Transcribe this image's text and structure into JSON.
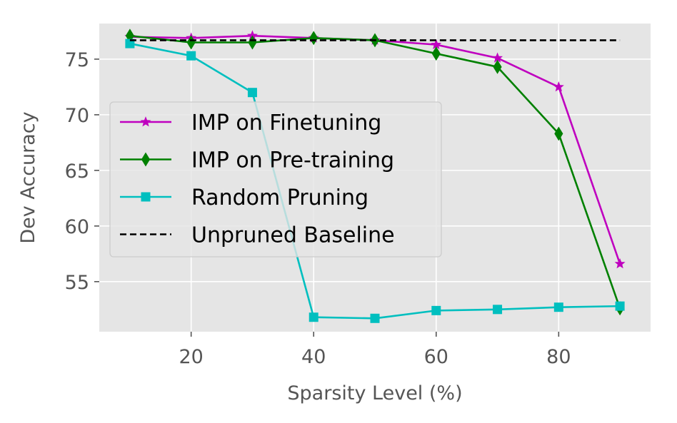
{
  "chart_data": {
    "type": "line",
    "title": "",
    "xlabel": "Sparsity Level (%)",
    "ylabel": "Dev Accuracy",
    "xlim": [
      5,
      95
    ],
    "ylim": [
      50.5,
      78.2
    ],
    "xticks": [
      20,
      40,
      60,
      80
    ],
    "yticks": [
      55,
      60,
      65,
      70,
      75
    ],
    "grid": true,
    "legend_position": "center-left",
    "series": [
      {
        "name": "IMP on Finetuning",
        "color": "#bf00bf",
        "marker": "star",
        "x": [
          10,
          20,
          30,
          40,
          50,
          60,
          70,
          80,
          90
        ],
        "values": [
          77.0,
          76.9,
          77.1,
          76.9,
          76.7,
          76.3,
          75.1,
          72.5,
          56.6
        ]
      },
      {
        "name": "IMP on Pre-training",
        "color": "#008000",
        "marker": "thin-diamond",
        "x": [
          10,
          20,
          30,
          40,
          50,
          60,
          70,
          80,
          90
        ],
        "values": [
          77.1,
          76.5,
          76.5,
          76.9,
          76.7,
          75.5,
          74.3,
          68.3,
          52.6
        ]
      },
      {
        "name": "Random Pruning",
        "color": "#00bfbf",
        "marker": "square",
        "x": [
          10,
          20,
          30,
          40,
          50,
          60,
          70,
          80,
          90
        ],
        "values": [
          76.4,
          75.3,
          72.0,
          51.8,
          51.7,
          52.4,
          52.5,
          52.7,
          52.8
        ]
      },
      {
        "name": "Unpruned Baseline",
        "color": "#000000",
        "marker": "none",
        "dashed": true,
        "x": [
          10,
          90
        ],
        "values": [
          76.7,
          76.7
        ]
      }
    ]
  }
}
